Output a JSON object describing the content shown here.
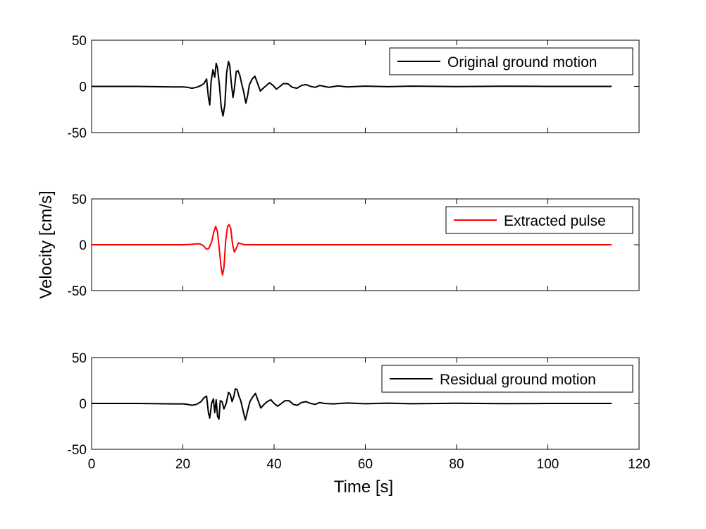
{
  "figure": {
    "xlabel": "Time [s]",
    "ylabel": "Velocity [cm/s]"
  },
  "chart_data": [
    {
      "type": "line",
      "xlim": [
        0,
        120
      ],
      "ylim": [
        -50,
        50
      ],
      "xticks": [
        0,
        20,
        40,
        60,
        80,
        100,
        120
      ],
      "yticks": [
        -50,
        0,
        50
      ],
      "show_xtick_labels": false,
      "grid": false,
      "legend_position": "top-right",
      "series": [
        {
          "name": "Original ground motion",
          "color": "#000000",
          "points": [
            [
              0,
              0
            ],
            [
              10,
              0
            ],
            [
              18,
              -0.5
            ],
            [
              20,
              -0.5
            ],
            [
              21,
              -1
            ],
            [
              22,
              -2
            ],
            [
              23,
              -1
            ],
            [
              24,
              1
            ],
            [
              24.6,
              3
            ],
            [
              25.2,
              8
            ],
            [
              25.6,
              -12
            ],
            [
              25.9,
              -20
            ],
            [
              26.2,
              5
            ],
            [
              26.6,
              18
            ],
            [
              27.0,
              10
            ],
            [
              27.3,
              25
            ],
            [
              27.6,
              20
            ],
            [
              28.0,
              2
            ],
            [
              28.4,
              -22
            ],
            [
              28.8,
              -32
            ],
            [
              29.2,
              -20
            ],
            [
              29.6,
              15
            ],
            [
              30.0,
              27
            ],
            [
              30.3,
              22
            ],
            [
              30.6,
              5
            ],
            [
              31.0,
              -12
            ],
            [
              31.3,
              -2
            ],
            [
              31.7,
              16
            ],
            [
              32.1,
              17
            ],
            [
              32.5,
              12
            ],
            [
              32.9,
              3
            ],
            [
              33.3,
              -5
            ],
            [
              33.8,
              -18
            ],
            [
              34.2,
              -10
            ],
            [
              34.6,
              2
            ],
            [
              35.2,
              8
            ],
            [
              35.8,
              11
            ],
            [
              36.4,
              3
            ],
            [
              37.0,
              -5
            ],
            [
              37.6,
              -2
            ],
            [
              38.3,
              1
            ],
            [
              39.0,
              4
            ],
            [
              39.8,
              1
            ],
            [
              40.5,
              -3
            ],
            [
              41.3,
              0
            ],
            [
              42.0,
              3
            ],
            [
              43.0,
              3
            ],
            [
              44.0,
              -1
            ],
            [
              45.0,
              -2
            ],
            [
              46.0,
              1
            ],
            [
              47.0,
              2
            ],
            [
              48.0,
              0
            ],
            [
              49.0,
              -1
            ],
            [
              50.0,
              1
            ],
            [
              51.0,
              0
            ],
            [
              52.0,
              -1
            ],
            [
              54.0,
              0.5
            ],
            [
              56.0,
              -0.5
            ],
            [
              60.0,
              0.3
            ],
            [
              65.0,
              -0.3
            ],
            [
              70.0,
              0.3
            ],
            [
              80.0,
              -0.2
            ],
            [
              90.0,
              0.2
            ],
            [
              100.0,
              0
            ],
            [
              114.0,
              0
            ]
          ]
        }
      ]
    },
    {
      "type": "line",
      "xlim": [
        0,
        120
      ],
      "ylim": [
        -50,
        50
      ],
      "xticks": [
        0,
        20,
        40,
        60,
        80,
        100,
        120
      ],
      "yticks": [
        -50,
        0,
        50
      ],
      "show_xtick_labels": false,
      "grid": false,
      "legend_position": "top-right",
      "series": [
        {
          "name": "Extracted pulse",
          "color": "#ff0000",
          "points": [
            [
              0,
              0
            ],
            [
              20,
              0
            ],
            [
              22,
              0.5
            ],
            [
              23,
              1
            ],
            [
              23.7,
              1
            ],
            [
              24.5,
              -1
            ],
            [
              25.2,
              -5
            ],
            [
              25.7,
              -4
            ],
            [
              26.3,
              3
            ],
            [
              26.8,
              14
            ],
            [
              27.2,
              20
            ],
            [
              27.6,
              14
            ],
            [
              28.0,
              -5
            ],
            [
              28.4,
              -25
            ],
            [
              28.7,
              -33
            ],
            [
              29.0,
              -25
            ],
            [
              29.4,
              5
            ],
            [
              29.8,
              20
            ],
            [
              30.1,
              22
            ],
            [
              30.5,
              18
            ],
            [
              30.9,
              0
            ],
            [
              31.3,
              -8
            ],
            [
              31.7,
              -4
            ],
            [
              32.2,
              2
            ],
            [
              32.8,
              1
            ],
            [
              33.5,
              0
            ],
            [
              35,
              0
            ],
            [
              40,
              0
            ],
            [
              60,
              0
            ],
            [
              80,
              0
            ],
            [
              100,
              0
            ],
            [
              114,
              0
            ]
          ]
        }
      ]
    },
    {
      "type": "line",
      "xlim": [
        0,
        120
      ],
      "ylim": [
        -50,
        50
      ],
      "xticks": [
        0,
        20,
        40,
        60,
        80,
        100,
        120
      ],
      "yticks": [
        -50,
        0,
        50
      ],
      "show_xtick_labels": true,
      "grid": false,
      "legend_position": "top-right",
      "series": [
        {
          "name": "Residual ground motion",
          "color": "#000000",
          "points": [
            [
              0,
              0
            ],
            [
              10,
              0
            ],
            [
              18,
              -0.5
            ],
            [
              20,
              -0.5
            ],
            [
              21,
              -1
            ],
            [
              22,
              -2
            ],
            [
              23,
              -1
            ],
            [
              24,
              2
            ],
            [
              24.6,
              6
            ],
            [
              25.2,
              8
            ],
            [
              25.6,
              -10
            ],
            [
              25.9,
              -16
            ],
            [
              26.3,
              0
            ],
            [
              26.7,
              5
            ],
            [
              27.0,
              -10
            ],
            [
              27.3,
              4
            ],
            [
              27.6,
              -14
            ],
            [
              27.9,
              -17
            ],
            [
              28.2,
              3
            ],
            [
              28.6,
              2
            ],
            [
              29.0,
              -6
            ],
            [
              29.5,
              0
            ],
            [
              30.0,
              12
            ],
            [
              30.4,
              10
            ],
            [
              30.8,
              2
            ],
            [
              31.2,
              8
            ],
            [
              31.5,
              16
            ],
            [
              31.9,
              15
            ],
            [
              32.3,
              8
            ],
            [
              32.7,
              3
            ],
            [
              33.2,
              -8
            ],
            [
              33.7,
              -18
            ],
            [
              34.2,
              -8
            ],
            [
              34.7,
              2
            ],
            [
              35.3,
              7
            ],
            [
              35.9,
              11
            ],
            [
              36.5,
              3
            ],
            [
              37.1,
              -5
            ],
            [
              37.8,
              -1
            ],
            [
              38.5,
              2
            ],
            [
              39.3,
              4
            ],
            [
              40.0,
              0
            ],
            [
              40.8,
              -3
            ],
            [
              41.6,
              0
            ],
            [
              42.4,
              3
            ],
            [
              43.3,
              3
            ],
            [
              44.2,
              -1
            ],
            [
              45.1,
              -2
            ],
            [
              46.0,
              1
            ],
            [
              47.0,
              2
            ],
            [
              48.0,
              0
            ],
            [
              49.0,
              -1
            ],
            [
              50.0,
              1
            ],
            [
              51.0,
              0
            ],
            [
              53.0,
              -0.5
            ],
            [
              56.0,
              0.5
            ],
            [
              60.0,
              -0.3
            ],
            [
              65.0,
              0.3
            ],
            [
              70.0,
              -0.3
            ],
            [
              80.0,
              0.2
            ],
            [
              90.0,
              -0.2
            ],
            [
              100.0,
              0
            ],
            [
              114.0,
              0
            ]
          ]
        }
      ]
    }
  ]
}
